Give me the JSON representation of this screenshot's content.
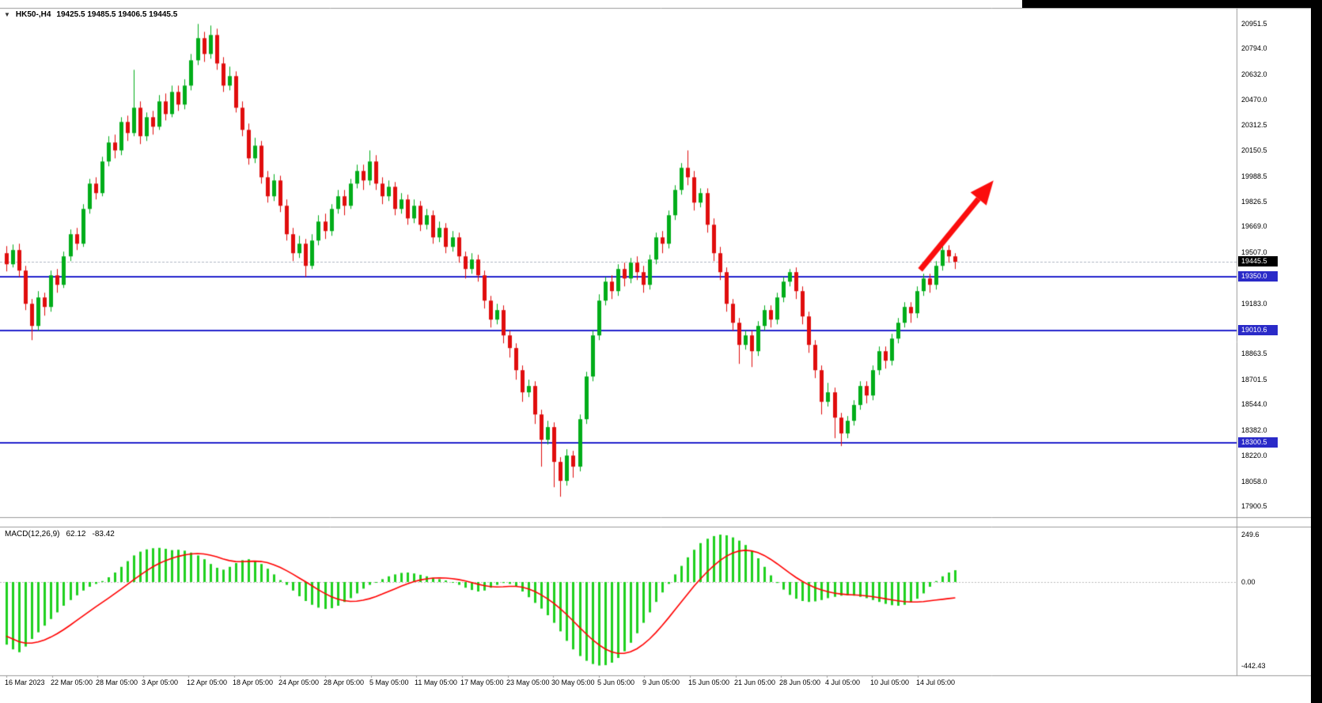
{
  "header": {
    "symbol": "HK50-,H4",
    "ohlc": "19425.5 19485.5 19406.5 19445.5"
  },
  "colors": {
    "bull": "#00ad19",
    "bear": "#e00d0d",
    "level_line": "#2222cd",
    "level_badge": "#2a2ac8",
    "current_line": "#b0b6c4",
    "current_badge": "#000000",
    "macd_hist": "#1fd11f",
    "macd_signal": "#ff0000",
    "zero_line": "#bbbbbb",
    "arrow": "#fb0d0d",
    "separator": "#9b9b9b",
    "axis_text": "#000000"
  },
  "chart_data": {
    "type": "candlestick",
    "title": "HK50-,H4",
    "symbol": "HK50-",
    "timeframe": "H4",
    "ohlc_display": {
      "open": "19425.5",
      "high": "19485.5",
      "low": "19406.5",
      "close": "19445.5"
    },
    "price_range": [
      17900.5,
      20951.5
    ],
    "grid": "off",
    "price_ticks": [
      "20951.5",
      "20794.0",
      "20632.0",
      "20470.0",
      "20312.5",
      "20150.5",
      "19988.5",
      "19826.5",
      "19669.0",
      "19507.0",
      "19183.0",
      "18863.5",
      "18701.5",
      "18544.0",
      "18382.0",
      "18220.0",
      "18058.0",
      "17900.5"
    ],
    "levels": [
      "19350.0",
      "19010.6",
      "18300.5"
    ],
    "current_price": "19445.5",
    "time_labels": [
      "16 Mar 2023",
      "22 Mar 05:00",
      "28 Mar 05:00",
      "3 Apr 05:00",
      "12 Apr 05:00",
      "18 Apr 05:00",
      "24 Apr 05:00",
      "28 Apr 05:00",
      "5 May 05:00",
      "11 May 05:00",
      "17 May 05:00",
      "23 May 05:00",
      "30 May 05:00",
      "5 Jun 05:00",
      "9 Jun 05:00",
      "15 Jun 05:00",
      "21 Jun 05:00",
      "28 Jun 05:00",
      "4 Jul 05:00",
      "10 Jul 05:00",
      "14 Jul 05:00"
    ],
    "annotation_arrow": {
      "from_bar": 143.5,
      "from_price": 19395,
      "to_bar": 155,
      "to_price": 19960
    },
    "candles": [
      [
        19500,
        19545,
        19385,
        19430
      ],
      [
        19430,
        19555,
        19410,
        19520
      ],
      [
        19520,
        19560,
        19350,
        19390
      ],
      [
        19390,
        19420,
        19140,
        19180
      ],
      [
        19180,
        19210,
        18950,
        19040
      ],
      [
        19040,
        19260,
        19010,
        19220
      ],
      [
        19220,
        19250,
        19105,
        19160
      ],
      [
        19160,
        19390,
        19130,
        19360
      ],
      [
        19360,
        19400,
        19250,
        19300
      ],
      [
        19300,
        19510,
        19280,
        19480
      ],
      [
        19480,
        19650,
        19450,
        19620
      ],
      [
        19620,
        19660,
        19520,
        19560
      ],
      [
        19560,
        19810,
        19540,
        19780
      ],
      [
        19780,
        19970,
        19750,
        19940
      ],
      [
        19940,
        19980,
        19840,
        19880
      ],
      [
        19880,
        20110,
        19860,
        20080
      ],
      [
        20080,
        20240,
        20050,
        20200
      ],
      [
        20200,
        20250,
        20100,
        20150
      ],
      [
        20150,
        20360,
        20120,
        20330
      ],
      [
        20330,
        20370,
        20210,
        20260
      ],
      [
        20260,
        20660,
        20240,
        20420
      ],
      [
        20420,
        20460,
        20190,
        20240
      ],
      [
        20240,
        20390,
        20210,
        20360
      ],
      [
        20360,
        20400,
        20250,
        20300
      ],
      [
        20300,
        20500,
        20280,
        20460
      ],
      [
        20460,
        20510,
        20340,
        20380
      ],
      [
        20380,
        20560,
        20360,
        20520
      ],
      [
        20520,
        20560,
        20400,
        20440
      ],
      [
        20440,
        20600,
        20410,
        20560
      ],
      [
        20560,
        20760,
        20530,
        20720
      ],
      [
        20720,
        20950,
        20690,
        20860
      ],
      [
        20860,
        20900,
        20710,
        20760
      ],
      [
        20760,
        20940,
        20730,
        20880
      ],
      [
        20880,
        20920,
        20660,
        20700
      ],
      [
        20700,
        20740,
        20520,
        20560
      ],
      [
        20560,
        20680,
        20530,
        20620
      ],
      [
        20620,
        20650,
        20390,
        20420
      ],
      [
        20420,
        20460,
        20240,
        20280
      ],
      [
        20280,
        20320,
        20060,
        20100
      ],
      [
        20100,
        20230,
        20070,
        20180
      ],
      [
        20180,
        20210,
        19940,
        19980
      ],
      [
        19980,
        20020,
        19820,
        19860
      ],
      [
        19860,
        20000,
        19830,
        19960
      ],
      [
        19960,
        19990,
        19760,
        19800
      ],
      [
        19800,
        19840,
        19580,
        19620
      ],
      [
        19620,
        19660,
        19450,
        19500
      ],
      [
        19500,
        19610,
        19470,
        19560
      ],
      [
        19560,
        19590,
        19350,
        19420
      ],
      [
        19420,
        19620,
        19400,
        19580
      ],
      [
        19580,
        19740,
        19550,
        19700
      ],
      [
        19700,
        19750,
        19590,
        19640
      ],
      [
        19640,
        19810,
        19610,
        19780
      ],
      [
        19780,
        19900,
        19750,
        19860
      ],
      [
        19860,
        19900,
        19740,
        19800
      ],
      [
        19800,
        19970,
        19780,
        19940
      ],
      [
        19940,
        20060,
        19910,
        20020
      ],
      [
        20020,
        20060,
        19900,
        19960
      ],
      [
        19960,
        20150,
        19930,
        20080
      ],
      [
        20080,
        20120,
        19900,
        19940
      ],
      [
        19940,
        19980,
        19810,
        19860
      ],
      [
        19860,
        19960,
        19830,
        19920
      ],
      [
        19920,
        19950,
        19740,
        19780
      ],
      [
        19780,
        19880,
        19750,
        19840
      ],
      [
        19840,
        19870,
        19680,
        19720
      ],
      [
        19720,
        19840,
        19690,
        19800
      ],
      [
        19800,
        19830,
        19640,
        19680
      ],
      [
        19680,
        19780,
        19650,
        19740
      ],
      [
        19740,
        19770,
        19560,
        19600
      ],
      [
        19600,
        19700,
        19570,
        19660
      ],
      [
        19660,
        19690,
        19500,
        19540
      ],
      [
        19540,
        19640,
        19510,
        19600
      ],
      [
        19600,
        19630,
        19440,
        19480
      ],
      [
        19480,
        19510,
        19340,
        19400
      ],
      [
        19400,
        19500,
        19370,
        19460
      ],
      [
        19460,
        19490,
        19320,
        19360
      ],
      [
        19360,
        19390,
        19150,
        19200
      ],
      [
        19200,
        19230,
        19030,
        19080
      ],
      [
        19080,
        19180,
        19050,
        19140
      ],
      [
        19140,
        19170,
        18930,
        18980
      ],
      [
        18980,
        19010,
        18840,
        18900
      ],
      [
        18900,
        18930,
        18700,
        18760
      ],
      [
        18760,
        18790,
        18560,
        18620
      ],
      [
        18620,
        18700,
        18590,
        18660
      ],
      [
        18660,
        18690,
        18420,
        18480
      ],
      [
        18480,
        18510,
        18150,
        18320
      ],
      [
        18320,
        18440,
        18290,
        18400
      ],
      [
        18400,
        18430,
        18020,
        18180
      ],
      [
        18180,
        18210,
        17960,
        18060
      ],
      [
        18060,
        18260,
        18030,
        18220
      ],
      [
        18220,
        18250,
        18080,
        18150
      ],
      [
        18150,
        18480,
        18120,
        18450
      ],
      [
        18450,
        18750,
        18420,
        18720
      ],
      [
        18720,
        19010,
        18690,
        18980
      ],
      [
        18980,
        19240,
        18950,
        19200
      ],
      [
        19200,
        19350,
        19170,
        19320
      ],
      [
        19320,
        19360,
        19210,
        19260
      ],
      [
        19260,
        19430,
        19230,
        19400
      ],
      [
        19400,
        19440,
        19290,
        19340
      ],
      [
        19340,
        19470,
        19310,
        19440
      ],
      [
        19440,
        19480,
        19330,
        19380
      ],
      [
        19380,
        19420,
        19250,
        19300
      ],
      [
        19300,
        19490,
        19270,
        19460
      ],
      [
        19460,
        19630,
        19430,
        19600
      ],
      [
        19600,
        19640,
        19500,
        19560
      ],
      [
        19560,
        19770,
        19530,
        19740
      ],
      [
        19740,
        19930,
        19710,
        19900
      ],
      [
        19900,
        20070,
        19870,
        20040
      ],
      [
        20040,
        20150,
        19930,
        19980
      ],
      [
        19980,
        20020,
        19770,
        19820
      ],
      [
        19820,
        19910,
        19790,
        19880
      ],
      [
        19880,
        19910,
        19630,
        19680
      ],
      [
        19680,
        19720,
        19450,
        19500
      ],
      [
        19500,
        19540,
        19330,
        19380
      ],
      [
        19380,
        19410,
        19130,
        19180
      ],
      [
        19180,
        19210,
        19010,
        19060
      ],
      [
        19060,
        19090,
        18800,
        18920
      ],
      [
        18920,
        19010,
        18890,
        18980
      ],
      [
        18980,
        19010,
        18780,
        18880
      ],
      [
        18880,
        19070,
        18850,
        19040
      ],
      [
        19040,
        19170,
        19010,
        19140
      ],
      [
        19140,
        19170,
        19030,
        19080
      ],
      [
        19080,
        19250,
        19050,
        19220
      ],
      [
        19220,
        19350,
        19190,
        19320
      ],
      [
        19320,
        19400,
        19290,
        19380
      ],
      [
        19380,
        19410,
        19210,
        19260
      ],
      [
        19260,
        19290,
        19050,
        19100
      ],
      [
        19100,
        19130,
        18870,
        18920
      ],
      [
        18920,
        18950,
        18710,
        18760
      ],
      [
        18760,
        18790,
        18480,
        18560
      ],
      [
        18560,
        18680,
        18530,
        18620
      ],
      [
        18620,
        18650,
        18330,
        18460
      ],
      [
        18460,
        18490,
        18280,
        18360
      ],
      [
        18360,
        18470,
        18330,
        18440
      ],
      [
        18440,
        18570,
        18410,
        18540
      ],
      [
        18540,
        18690,
        18510,
        18660
      ],
      [
        18660,
        18690,
        18550,
        18600
      ],
      [
        18600,
        18790,
        18570,
        18760
      ],
      [
        18760,
        18910,
        18730,
        18880
      ],
      [
        18880,
        18910,
        18770,
        18820
      ],
      [
        18820,
        18990,
        18790,
        18960
      ],
      [
        18960,
        19090,
        18930,
        19060
      ],
      [
        19060,
        19190,
        19030,
        19160
      ],
      [
        19160,
        19190,
        19060,
        19120
      ],
      [
        19120,
        19290,
        19090,
        19260
      ],
      [
        19260,
        19370,
        19230,
        19340
      ],
      [
        19340,
        19370,
        19250,
        19300
      ],
      [
        19300,
        19450,
        19270,
        19420
      ],
      [
        19420,
        19560,
        19390,
        19520
      ],
      [
        19520,
        19550,
        19440,
        19480
      ],
      [
        19480,
        19500,
        19400,
        19445.5
      ]
    ],
    "macd": {
      "label": "MACD(12,26,9)",
      "params": "12,26,9",
      "main_last": "62.12",
      "signal_last": "-83.42",
      "ticks": [
        "249.6",
        "0.00",
        "-442.43"
      ],
      "range": [
        -442.43,
        249.6
      ],
      "main": [
        -330,
        -355,
        -370,
        -340,
        -300,
        -265,
        -230,
        -195,
        -160,
        -125,
        -95,
        -70,
        -45,
        -25,
        -10,
        5,
        25,
        50,
        80,
        110,
        140,
        160,
        172,
        178,
        180,
        175,
        168,
        170,
        165,
        155,
        140,
        120,
        95,
        75,
        65,
        80,
        100,
        115,
        120,
        110,
        95,
        70,
        40,
        10,
        -15,
        -45,
        -75,
        -100,
        -120,
        -135,
        -142,
        -138,
        -125,
        -105,
        -85,
        -60,
        -35,
        -15,
        0,
        15,
        30,
        40,
        48,
        50,
        45,
        38,
        30,
        22,
        15,
        8,
        0,
        -15,
        -30,
        -42,
        -50,
        -45,
        -30,
        -15,
        -5,
        -10,
        -25,
        -50,
        -80,
        -110,
        -140,
        -175,
        -215,
        -260,
        -310,
        -355,
        -390,
        -415,
        -432,
        -440,
        -438,
        -425,
        -400,
        -365,
        -320,
        -270,
        -215,
        -160,
        -105,
        -55,
        -10,
        40,
        85,
        130,
        170,
        205,
        228,
        242,
        249.6,
        246,
        235,
        218,
        195,
        165,
        125,
        80,
        35,
        -5,
        -40,
        -68,
        -88,
        -100,
        -105,
        -102,
        -95,
        -85,
        -78,
        -72,
        -70,
        -72,
        -78,
        -85,
        -95,
        -105,
        -115,
        -122,
        -125,
        -120,
        -108,
        -88,
        -60,
        -25,
        5,
        30,
        50,
        62.12
      ],
      "signal": [
        -285,
        -300,
        -315,
        -322,
        -322,
        -316,
        -305,
        -290,
        -272,
        -251,
        -228,
        -204,
        -180,
        -156,
        -132,
        -109,
        -86,
        -62,
        -38,
        -13,
        12,
        36,
        59,
        80,
        98,
        113,
        125,
        135,
        143,
        148,
        150,
        148,
        142,
        133,
        122,
        113,
        108,
        107,
        109,
        110,
        108,
        102,
        91,
        77,
        60,
        41,
        21,
        1,
        -20,
        -41,
        -60,
        -77,
        -90,
        -98,
        -102,
        -101,
        -96,
        -88,
        -77,
        -64,
        -50,
        -36,
        -22,
        -9,
        2,
        11,
        17,
        21,
        22,
        21,
        18,
        13,
        6,
        -2,
        -11,
        -19,
        -24,
        -26,
        -25,
        -23,
        -23,
        -27,
        -36,
        -50,
        -68,
        -89,
        -113,
        -141,
        -172,
        -205,
        -239,
        -272,
        -303,
        -330,
        -352,
        -368,
        -376,
        -376,
        -368,
        -352,
        -329,
        -300,
        -266,
        -228,
        -188,
        -146,
        -104,
        -62,
        -21,
        17,
        52,
        84,
        112,
        135,
        152,
        163,
        167,
        164,
        155,
        140,
        120,
        97,
        72,
        47,
        24,
        3,
        -15,
        -30,
        -42,
        -51,
        -58,
        -63,
        -66,
        -68,
        -70,
        -73,
        -77,
        -82,
        -88,
        -94,
        -99,
        -103,
        -105,
        -105,
        -103,
        -99,
        -95,
        -91,
        -87,
        -83.42
      ]
    }
  }
}
